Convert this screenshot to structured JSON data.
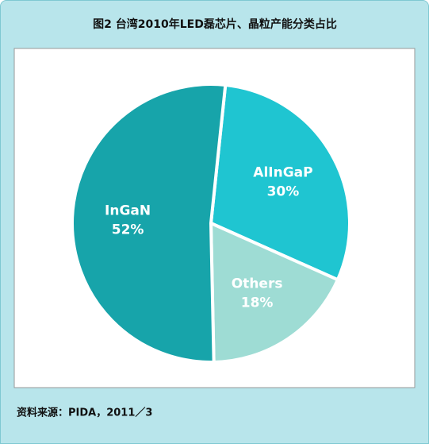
{
  "chart_data": {
    "type": "pie",
    "title": "图2  台湾2010年LED磊芯片、晶粒产能分类占比",
    "categories": [
      "AlInGaP",
      "Others",
      "InGaN"
    ],
    "values": [
      30,
      18,
      52
    ],
    "value_labels": [
      "30%",
      "18%",
      "52%"
    ],
    "colors": [
      "#1fc5d1",
      "#9edcd4",
      "#17a4aa"
    ],
    "source": "资料来源：PIDA，2011／3"
  }
}
